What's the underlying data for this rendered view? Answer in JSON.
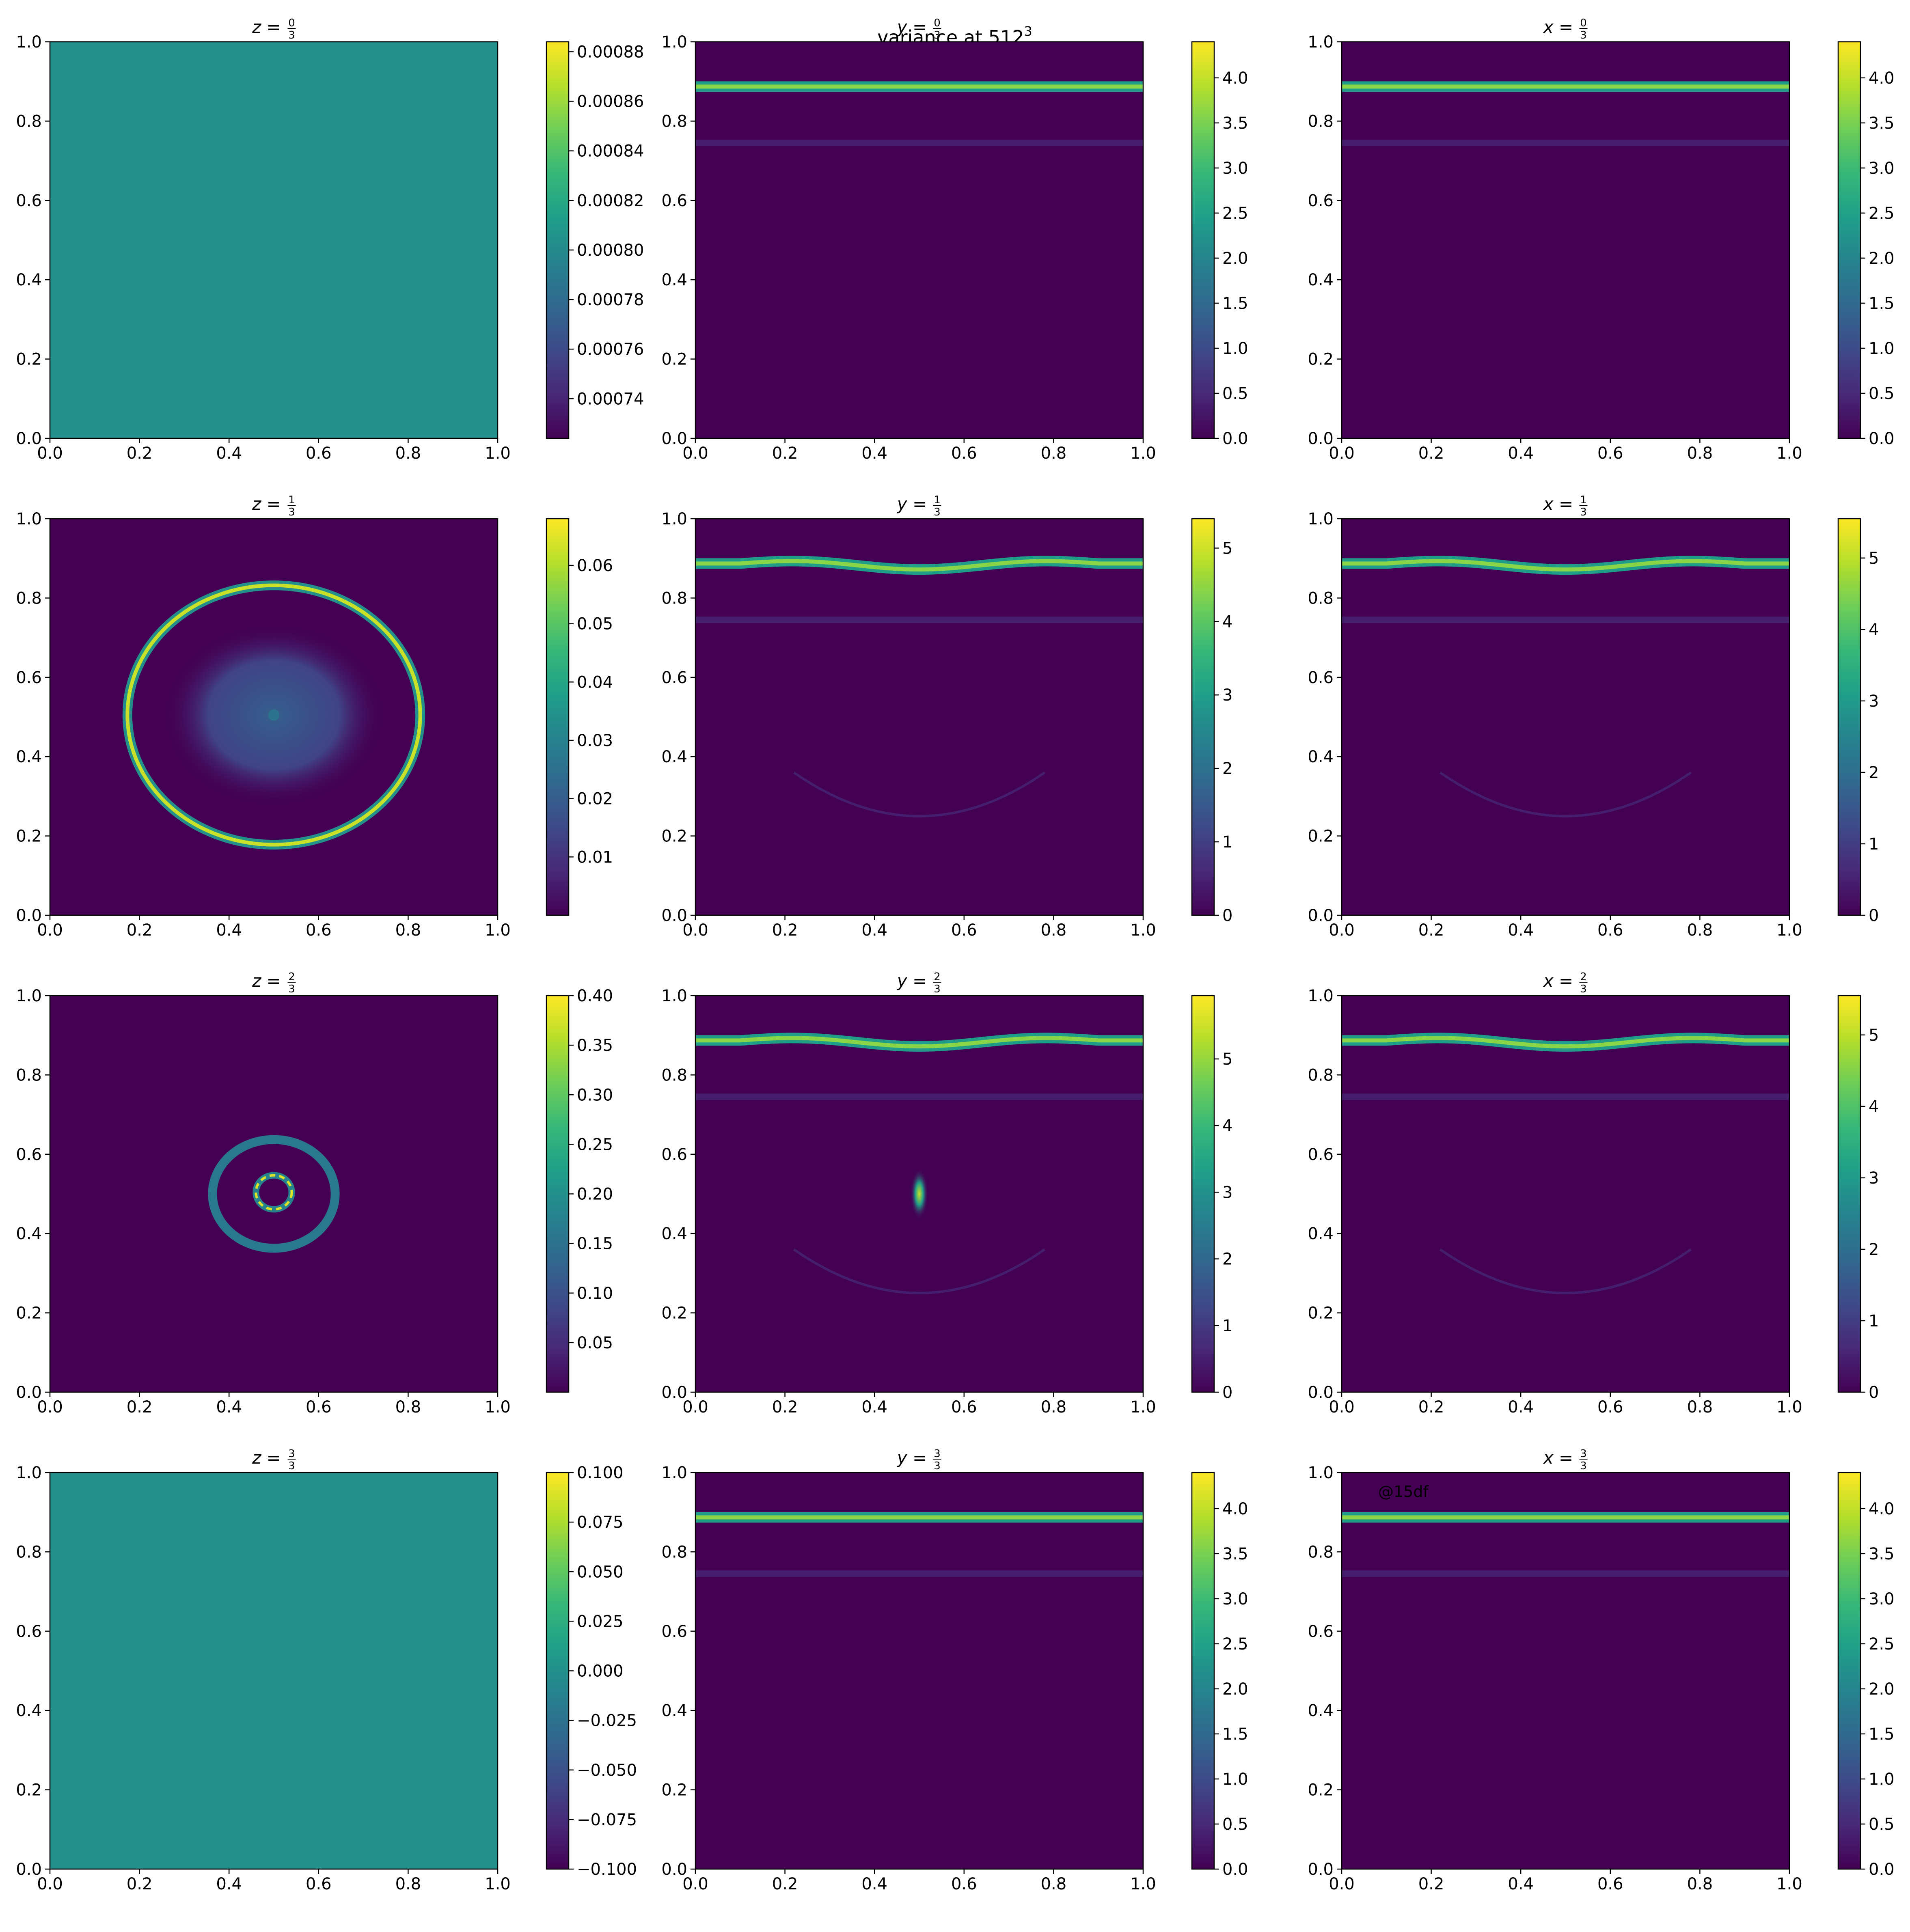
{
  "suptitle": {
    "main": "variance at 512",
    "sup": "3"
  },
  "watermark": "@15df",
  "colormap": [
    "#440154",
    "#482878",
    "#3e4a89",
    "#31688e",
    "#26828e",
    "#1f9e89",
    "#35b779",
    "#6ece58",
    "#b5de2b",
    "#fde725"
  ],
  "chart_data": [
    {
      "type": "heatmap",
      "slice": "z",
      "title": {
        "var": "z",
        "num": "0",
        "den": "3"
      },
      "xlim": [
        0,
        1
      ],
      "ylim": [
        0,
        1
      ],
      "xticks": [
        "0.0",
        "0.2",
        "0.4",
        "0.6",
        "0.8",
        "1.0"
      ],
      "yticks": [
        "0.0",
        "0.2",
        "0.4",
        "0.6",
        "0.8",
        "1.0"
      ],
      "colorbar": {
        "range": [
          0.000724,
          0.000884
        ],
        "ticks": [
          {
            "v": 0.00074,
            "label": "0.00074"
          },
          {
            "v": 0.00076,
            "label": "0.00076"
          },
          {
            "v": 0.00078,
            "label": "0.00078"
          },
          {
            "v": 0.0008,
            "label": "0.00080"
          },
          {
            "v": 0.00082,
            "label": "0.00082"
          },
          {
            "v": 0.00084,
            "label": "0.00084"
          },
          {
            "v": 0.00086,
            "label": "0.00086"
          },
          {
            "v": 0.00088,
            "label": "0.00088"
          }
        ]
      },
      "field": {
        "kind": "uniform",
        "fraction": 0.5
      }
    },
    {
      "type": "heatmap",
      "slice": "y",
      "title": {
        "var": "y",
        "num": "0",
        "den": "3"
      },
      "xlim": [
        0,
        1
      ],
      "ylim": [
        0,
        1
      ],
      "xticks": [
        "0.0",
        "0.2",
        "0.4",
        "0.6",
        "0.8",
        "1.0"
      ],
      "yticks": [
        "0.0",
        "0.2",
        "0.4",
        "0.6",
        "0.8",
        "1.0"
      ],
      "colorbar": {
        "range": [
          0,
          4.4
        ],
        "ticks": [
          {
            "v": 0,
            "label": "0.0"
          },
          {
            "v": 0.5,
            "label": "0.5"
          },
          {
            "v": 1,
            "label": "1.0"
          },
          {
            "v": 1.5,
            "label": "1.5"
          },
          {
            "v": 2,
            "label": "2.0"
          },
          {
            "v": 2.5,
            "label": "2.5"
          },
          {
            "v": 3,
            "label": "3.0"
          },
          {
            "v": 3.5,
            "label": "3.5"
          },
          {
            "v": 4,
            "label": "4.0"
          }
        ]
      },
      "field": {
        "kind": "bands",
        "wavy": false,
        "band_y": 0.887,
        "faint_y": 0.745
      }
    },
    {
      "type": "heatmap",
      "slice": "x",
      "title": {
        "var": "x",
        "num": "0",
        "den": "3"
      },
      "xlim": [
        0,
        1
      ],
      "ylim": [
        0,
        1
      ],
      "xticks": [
        "0.0",
        "0.2",
        "0.4",
        "0.6",
        "0.8",
        "1.0"
      ],
      "yticks": [
        "0.0",
        "0.2",
        "0.4",
        "0.6",
        "0.8",
        "1.0"
      ],
      "colorbar": {
        "range": [
          0,
          4.4
        ],
        "ticks": [
          {
            "v": 0,
            "label": "0.0"
          },
          {
            "v": 0.5,
            "label": "0.5"
          },
          {
            "v": 1,
            "label": "1.0"
          },
          {
            "v": 1.5,
            "label": "1.5"
          },
          {
            "v": 2,
            "label": "2.0"
          },
          {
            "v": 2.5,
            "label": "2.5"
          },
          {
            "v": 3,
            "label": "3.0"
          },
          {
            "v": 3.5,
            "label": "3.5"
          },
          {
            "v": 4,
            "label": "4.0"
          }
        ]
      },
      "field": {
        "kind": "bands",
        "wavy": false,
        "band_y": 0.887,
        "faint_y": 0.745
      }
    },
    {
      "type": "heatmap",
      "slice": "z",
      "title": {
        "var": "z",
        "num": "1",
        "den": "3"
      },
      "xlim": [
        0,
        1
      ],
      "ylim": [
        0,
        1
      ],
      "xticks": [
        "0.0",
        "0.2",
        "0.4",
        "0.6",
        "0.8",
        "1.0"
      ],
      "yticks": [
        "0.0",
        "0.2",
        "0.4",
        "0.6",
        "0.8",
        "1.0"
      ],
      "colorbar": {
        "range": [
          0,
          0.068
        ],
        "ticks": [
          {
            "v": 0.01,
            "label": "0.01"
          },
          {
            "v": 0.02,
            "label": "0.02"
          },
          {
            "v": 0.03,
            "label": "0.03"
          },
          {
            "v": 0.04,
            "label": "0.04"
          },
          {
            "v": 0.05,
            "label": "0.05"
          },
          {
            "v": 0.06,
            "label": "0.06"
          }
        ]
      },
      "field": {
        "kind": "ring",
        "cx": 0.5,
        "cy": 0.505,
        "r": 0.327,
        "inner_r": 0.0,
        "haze": true
      }
    },
    {
      "type": "heatmap",
      "slice": "y",
      "title": {
        "var": "y",
        "num": "1",
        "den": "3"
      },
      "xlim": [
        0,
        1
      ],
      "ylim": [
        0,
        1
      ],
      "xticks": [
        "0.0",
        "0.2",
        "0.4",
        "0.6",
        "0.8",
        "1.0"
      ],
      "yticks": [
        "0.0",
        "0.2",
        "0.4",
        "0.6",
        "0.8",
        "1.0"
      ],
      "colorbar": {
        "range": [
          0,
          5.4
        ],
        "ticks": [
          {
            "v": 0,
            "label": "0"
          },
          {
            "v": 1,
            "label": "1"
          },
          {
            "v": 2,
            "label": "2"
          },
          {
            "v": 3,
            "label": "3"
          },
          {
            "v": 4,
            "label": "4"
          },
          {
            "v": 5,
            "label": "5"
          }
        ]
      },
      "field": {
        "kind": "bands",
        "wavy": true,
        "band_y": 0.887,
        "faint_y": 0.745,
        "arc": true
      }
    },
    {
      "type": "heatmap",
      "slice": "x",
      "title": {
        "var": "x",
        "num": "1",
        "den": "3"
      },
      "xlim": [
        0,
        1
      ],
      "ylim": [
        0,
        1
      ],
      "xticks": [
        "0.0",
        "0.2",
        "0.4",
        "0.6",
        "0.8",
        "1.0"
      ],
      "yticks": [
        "0.0",
        "0.2",
        "0.4",
        "0.6",
        "0.8",
        "1.0"
      ],
      "colorbar": {
        "range": [
          0,
          5.55
        ],
        "ticks": [
          {
            "v": 0,
            "label": "0"
          },
          {
            "v": 1,
            "label": "1"
          },
          {
            "v": 2,
            "label": "2"
          },
          {
            "v": 3,
            "label": "3"
          },
          {
            "v": 4,
            "label": "4"
          },
          {
            "v": 5,
            "label": "5"
          }
        ]
      },
      "field": {
        "kind": "bands",
        "wavy": true,
        "band_y": 0.887,
        "faint_y": 0.745,
        "arc": true
      }
    },
    {
      "type": "heatmap",
      "slice": "z",
      "title": {
        "var": "z",
        "num": "2",
        "den": "3"
      },
      "xlim": [
        0,
        1
      ],
      "ylim": [
        0,
        1
      ],
      "xticks": [
        "0.0",
        "0.2",
        "0.4",
        "0.6",
        "0.8",
        "1.0"
      ],
      "yticks": [
        "0.0",
        "0.2",
        "0.4",
        "0.6",
        "0.8",
        "1.0"
      ],
      "colorbar": {
        "range": [
          0,
          0.4
        ],
        "ticks": [
          {
            "v": 0.05,
            "label": "0.05"
          },
          {
            "v": 0.1,
            "label": "0.10"
          },
          {
            "v": 0.15,
            "label": "0.15"
          },
          {
            "v": 0.2,
            "label": "0.20"
          },
          {
            "v": 0.25,
            "label": "0.25"
          },
          {
            "v": 0.3,
            "label": "0.30"
          },
          {
            "v": 0.35,
            "label": "0.35"
          },
          {
            "v": 0.4,
            "label": "0.40"
          }
        ]
      },
      "field": {
        "kind": "ring",
        "cx": 0.5,
        "cy": 0.5,
        "r": 0.137,
        "inner_r": 0.04,
        "haze": false
      }
    },
    {
      "type": "heatmap",
      "slice": "y",
      "title": {
        "var": "y",
        "num": "2",
        "den": "3"
      },
      "xlim": [
        0,
        1
      ],
      "ylim": [
        0,
        1
      ],
      "xticks": [
        "0.0",
        "0.2",
        "0.4",
        "0.6",
        "0.8",
        "1.0"
      ],
      "yticks": [
        "0.0",
        "0.2",
        "0.4",
        "0.6",
        "0.8",
        "1.0"
      ],
      "colorbar": {
        "range": [
          0,
          5.95
        ],
        "ticks": [
          {
            "v": 0,
            "label": "0"
          },
          {
            "v": 1,
            "label": "1"
          },
          {
            "v": 2,
            "label": "2"
          },
          {
            "v": 3,
            "label": "3"
          },
          {
            "v": 4,
            "label": "4"
          },
          {
            "v": 5,
            "label": "5"
          }
        ]
      },
      "field": {
        "kind": "bands",
        "wavy": true,
        "band_y": 0.887,
        "faint_y": 0.745,
        "arc": true,
        "blob": {
          "x": 0.5,
          "y": 0.5
        }
      }
    },
    {
      "type": "heatmap",
      "slice": "x",
      "title": {
        "var": "x",
        "num": "2",
        "den": "3"
      },
      "xlim": [
        0,
        1
      ],
      "ylim": [
        0,
        1
      ],
      "xticks": [
        "0.0",
        "0.2",
        "0.4",
        "0.6",
        "0.8",
        "1.0"
      ],
      "yticks": [
        "0.0",
        "0.2",
        "0.4",
        "0.6",
        "0.8",
        "1.0"
      ],
      "colorbar": {
        "range": [
          0,
          5.55
        ],
        "ticks": [
          {
            "v": 0,
            "label": "0"
          },
          {
            "v": 1,
            "label": "1"
          },
          {
            "v": 2,
            "label": "2"
          },
          {
            "v": 3,
            "label": "3"
          },
          {
            "v": 4,
            "label": "4"
          },
          {
            "v": 5,
            "label": "5"
          }
        ]
      },
      "field": {
        "kind": "bands",
        "wavy": true,
        "band_y": 0.887,
        "faint_y": 0.745,
        "arc": true
      }
    },
    {
      "type": "heatmap",
      "slice": "z",
      "title": {
        "var": "z",
        "num": "3",
        "den": "3"
      },
      "xlim": [
        0,
        1
      ],
      "ylim": [
        0,
        1
      ],
      "xticks": [
        "0.0",
        "0.2",
        "0.4",
        "0.6",
        "0.8",
        "1.0"
      ],
      "yticks": [
        "0.0",
        "0.2",
        "0.4",
        "0.6",
        "0.8",
        "1.0"
      ],
      "colorbar": {
        "range": [
          -0.1,
          0.1
        ],
        "ticks": [
          {
            "v": -0.1,
            "label": "−0.100"
          },
          {
            "v": -0.075,
            "label": "−0.075"
          },
          {
            "v": -0.05,
            "label": "−0.050"
          },
          {
            "v": -0.025,
            "label": "−0.025"
          },
          {
            "v": 0,
            "label": "0.000"
          },
          {
            "v": 0.025,
            "label": "0.025"
          },
          {
            "v": 0.05,
            "label": "0.050"
          },
          {
            "v": 0.075,
            "label": "0.075"
          },
          {
            "v": 0.1,
            "label": "0.100"
          }
        ]
      },
      "field": {
        "kind": "uniform",
        "fraction": 0.5
      }
    },
    {
      "type": "heatmap",
      "slice": "y",
      "title": {
        "var": "y",
        "num": "3",
        "den": "3"
      },
      "xlim": [
        0,
        1
      ],
      "ylim": [
        0,
        1
      ],
      "xticks": [
        "0.0",
        "0.2",
        "0.4",
        "0.6",
        "0.8",
        "1.0"
      ],
      "yticks": [
        "0.0",
        "0.2",
        "0.4",
        "0.6",
        "0.8",
        "1.0"
      ],
      "colorbar": {
        "range": [
          0,
          4.4
        ],
        "ticks": [
          {
            "v": 0,
            "label": "0.0"
          },
          {
            "v": 0.5,
            "label": "0.5"
          },
          {
            "v": 1,
            "label": "1.0"
          },
          {
            "v": 1.5,
            "label": "1.5"
          },
          {
            "v": 2,
            "label": "2.0"
          },
          {
            "v": 2.5,
            "label": "2.5"
          },
          {
            "v": 3,
            "label": "3.0"
          },
          {
            "v": 3.5,
            "label": "3.5"
          },
          {
            "v": 4,
            "label": "4.0"
          }
        ]
      },
      "field": {
        "kind": "bands",
        "wavy": false,
        "band_y": 0.887,
        "faint_y": 0.745
      }
    },
    {
      "type": "heatmap",
      "slice": "x",
      "title": {
        "var": "x",
        "num": "3",
        "den": "3"
      },
      "xlim": [
        0,
        1
      ],
      "ylim": [
        0,
        1
      ],
      "xticks": [
        "0.0",
        "0.2",
        "0.4",
        "0.6",
        "0.8",
        "1.0"
      ],
      "yticks": [
        "0.0",
        "0.2",
        "0.4",
        "0.6",
        "0.8",
        "1.0"
      ],
      "colorbar": {
        "range": [
          0,
          4.4
        ],
        "ticks": [
          {
            "v": 0,
            "label": "0.0"
          },
          {
            "v": 0.5,
            "label": "0.5"
          },
          {
            "v": 1,
            "label": "1.0"
          },
          {
            "v": 1.5,
            "label": "1.5"
          },
          {
            "v": 2,
            "label": "2.0"
          },
          {
            "v": 2.5,
            "label": "2.5"
          },
          {
            "v": 3,
            "label": "3.0"
          },
          {
            "v": 3.5,
            "label": "3.5"
          },
          {
            "v": 4,
            "label": "4.0"
          }
        ]
      },
      "field": {
        "kind": "bands",
        "wavy": false,
        "band_y": 0.887,
        "faint_y": 0.745
      }
    }
  ]
}
